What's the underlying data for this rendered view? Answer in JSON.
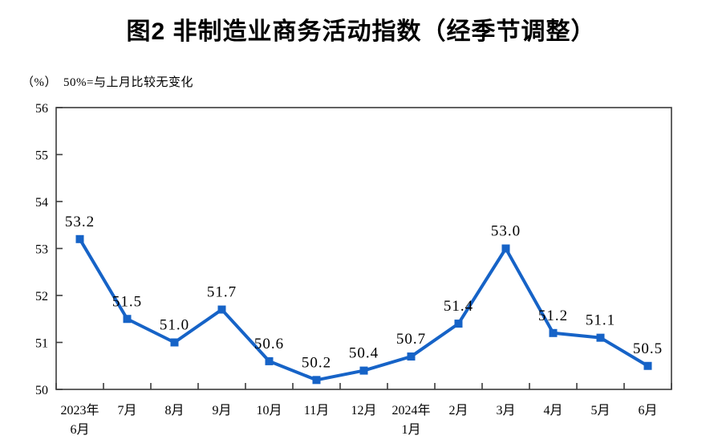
{
  "colors": {
    "line": "#1663c7",
    "axis": "#3c3c3c",
    "text": "#000000",
    "background": "#ffffff"
  },
  "chart_data": {
    "type": "line",
    "title": "图2 非制造业商务活动指数（经季节调整）",
    "unit": "（%）",
    "subtitle_note": "50%=与上月比较无变化",
    "categories": [
      [
        "2023年",
        "6月"
      ],
      [
        "7月"
      ],
      [
        "8月"
      ],
      [
        "9月"
      ],
      [
        "10月"
      ],
      [
        "11月"
      ],
      [
        "12月"
      ],
      [
        "2024年",
        "1月"
      ],
      [
        "2月"
      ],
      [
        "3月"
      ],
      [
        "4月"
      ],
      [
        "5月"
      ],
      [
        "6月"
      ]
    ],
    "values": [
      53.2,
      51.5,
      51.0,
      51.7,
      50.6,
      50.2,
      50.4,
      50.7,
      51.4,
      53.0,
      51.2,
      51.1,
      50.5
    ],
    "series_name": "非制造业商务活动指数",
    "ylim": [
      50,
      56
    ],
    "yticks": [
      50,
      51,
      52,
      53,
      54,
      55,
      56
    ],
    "value_label_decimals": 1,
    "grid": false,
    "legend": "none",
    "marker": "square",
    "line_color": "#1663c7"
  }
}
